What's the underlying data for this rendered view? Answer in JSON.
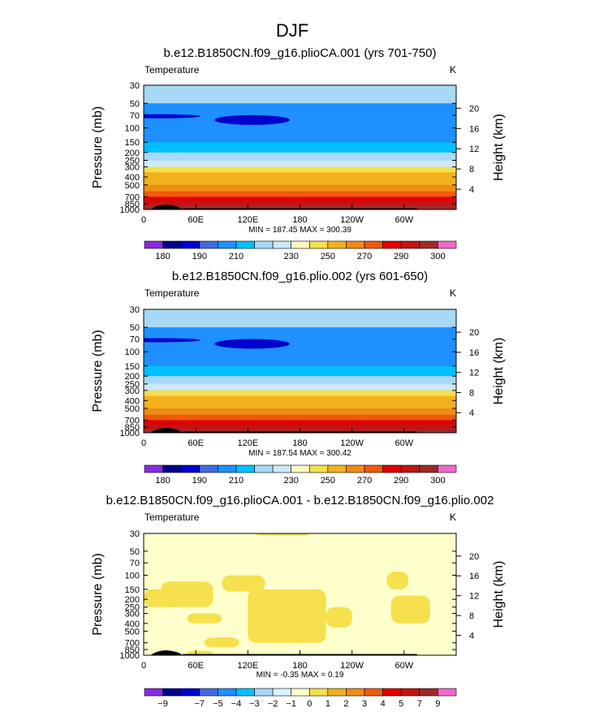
{
  "page_title": "DJF",
  "colors": {
    "temperature_scale": [
      "#8a2be2",
      "#00008b",
      "#0000cd",
      "#4169e1",
      "#1e90ff",
      "#00bfff",
      "#a7d8f5",
      "#cde8f7",
      "#fff6c0",
      "#f5e04d",
      "#f2b21e",
      "#ee8c14",
      "#f05a0a",
      "#e00000",
      "#c21414",
      "#9e2a2a",
      "#f068c8"
    ],
    "difference_scale": [
      "#8a2be2",
      "#00008b",
      "#0000cd",
      "#4169e1",
      "#1e90ff",
      "#00bfff",
      "#a7d8f5",
      "#d8f5ff",
      "#ffffcc",
      "#f5e04d",
      "#f2b21e",
      "#ee8c14",
      "#f05a0a",
      "#e00000",
      "#c21414",
      "#9e2a2a",
      "#f068c8"
    ],
    "topography": "#000000"
  },
  "chart_data": [
    {
      "type": "heatmap",
      "title": "b.e12.B1850CN.f09_g16.plioCA.001 (yrs 701-750)",
      "subtitle": "Temperature",
      "units": "K",
      "ylabel": "Pressure (mb)",
      "right_label": "Height (km)",
      "x_ticks": [
        "0",
        "60E",
        "120E",
        "180",
        "120W",
        "60W"
      ],
      "y_ticks": [
        "30",
        "50",
        "70",
        "100",
        "150",
        "200",
        "250",
        "300",
        "400",
        "500",
        "700",
        "850",
        "1000"
      ],
      "right_ticks": [
        "20",
        "16",
        "12",
        "8",
        "4"
      ],
      "yscale": "log",
      "ylim": [
        1000,
        30
      ],
      "stats": "MIN = 187.45   MAX = 300.39",
      "colorbar_labels": [
        "180",
        "190",
        "210",
        "230",
        "250",
        "270",
        "290",
        "300"
      ],
      "layers": [
        {
          "p": 30,
          "value": 215
        },
        {
          "p": 50,
          "value": 208
        },
        {
          "p": 70,
          "value": 200
        },
        {
          "p": 100,
          "value": 200
        },
        {
          "p": 130,
          "value": 205
        },
        {
          "p": 150,
          "value": 210
        },
        {
          "p": 200,
          "value": 215
        },
        {
          "p": 250,
          "value": 225
        },
        {
          "p": 300,
          "value": 240
        },
        {
          "p": 350,
          "value": 250
        },
        {
          "p": 400,
          "value": 258
        },
        {
          "p": 500,
          "value": 266
        },
        {
          "p": 600,
          "value": 274
        },
        {
          "p": 700,
          "value": 282
        },
        {
          "p": 800,
          "value": 290
        },
        {
          "p": 900,
          "value": 296
        },
        {
          "p": 1000,
          "value": 300
        }
      ]
    },
    {
      "type": "heatmap",
      "title": "b.e12.B1850CN.f09_g16.plio.002 (yrs 601-650)",
      "subtitle": "Temperature",
      "units": "K",
      "ylabel": "Pressure (mb)",
      "right_label": "Height (km)",
      "x_ticks": [
        "0",
        "60E",
        "120E",
        "180",
        "120W",
        "60W"
      ],
      "y_ticks": [
        "30",
        "50",
        "70",
        "100",
        "150",
        "200",
        "250",
        "300",
        "400",
        "500",
        "700",
        "850",
        "1000"
      ],
      "right_ticks": [
        "20",
        "16",
        "12",
        "8",
        "4"
      ],
      "yscale": "log",
      "ylim": [
        1000,
        30
      ],
      "stats": "MIN = 187.54   MAX = 300.42",
      "colorbar_labels": [
        "180",
        "190",
        "210",
        "230",
        "250",
        "270",
        "290",
        "300"
      ],
      "layers": [
        {
          "p": 30,
          "value": 215
        },
        {
          "p": 50,
          "value": 208
        },
        {
          "p": 70,
          "value": 200
        },
        {
          "p": 100,
          "value": 200
        },
        {
          "p": 130,
          "value": 205
        },
        {
          "p": 150,
          "value": 210
        },
        {
          "p": 200,
          "value": 215
        },
        {
          "p": 250,
          "value": 225
        },
        {
          "p": 300,
          "value": 240
        },
        {
          "p": 350,
          "value": 250
        },
        {
          "p": 400,
          "value": 258
        },
        {
          "p": 500,
          "value": 266
        },
        {
          "p": 600,
          "value": 274
        },
        {
          "p": 700,
          "value": 282
        },
        {
          "p": 800,
          "value": 290
        },
        {
          "p": 900,
          "value": 296
        },
        {
          "p": 1000,
          "value": 300
        }
      ]
    },
    {
      "type": "heatmap",
      "title": "b.e12.B1850CN.f09_g16.plioCA.001 - b.e12.B1850CN.f09_g16.plio.002",
      "subtitle": "Temperature",
      "units": "K",
      "ylabel": "Pressure (mb)",
      "right_label": "Height (km)",
      "x_ticks": [
        "0",
        "60E",
        "120E",
        "180",
        "120W",
        "60W"
      ],
      "y_ticks": [
        "30",
        "50",
        "70",
        "100",
        "150",
        "200",
        "250",
        "300",
        "400",
        "500",
        "700",
        "850",
        "1000"
      ],
      "right_ticks": [
        "20",
        "16",
        "12",
        "8",
        "4"
      ],
      "yscale": "log",
      "ylim": [
        1000,
        30
      ],
      "stats": "MIN =   -0.35   MAX =     0.19",
      "colorbar_labels": [
        "-9",
        "-7",
        "-5",
        "-4",
        "-3",
        "-2",
        "-1",
        "0",
        "1",
        "2",
        "3",
        "4",
        "5",
        "7",
        "9"
      ],
      "background_value": -0.1,
      "regions": [
        {
          "value": 0.1,
          "lon": [
            120,
            210
          ],
          "p": [
            150,
            700
          ]
        },
        {
          "value": 0.1,
          "lon": [
            20,
            80
          ],
          "p": [
            120,
            250
          ]
        },
        {
          "value": 0.1,
          "lon": [
            90,
            140
          ],
          "p": [
            100,
            160
          ]
        },
        {
          "value": 0.1,
          "lon": [
            210,
            240
          ],
          "p": [
            250,
            450
          ]
        },
        {
          "value": 0.1,
          "lon": [
            285,
            330
          ],
          "p": [
            180,
            400
          ]
        },
        {
          "value": 0.1,
          "lon": [
            280,
            305
          ],
          "p": [
            90,
            150
          ]
        },
        {
          "value": 0.1,
          "lon": [
            0,
            40
          ],
          "p": [
            150,
            250
          ]
        },
        {
          "value": 0.1,
          "lon": [
            50,
            90
          ],
          "p": [
            300,
            400
          ]
        },
        {
          "value": 0.1,
          "lon": [
            70,
            110
          ],
          "p": [
            600,
            800
          ]
        },
        {
          "value": 0.1,
          "lon": [
            130,
            190
          ],
          "p": [
            30,
            32
          ]
        },
        {
          "value": 0.1,
          "lon": [
            50,
            80
          ],
          "p": [
            880,
            990
          ]
        }
      ]
    }
  ]
}
